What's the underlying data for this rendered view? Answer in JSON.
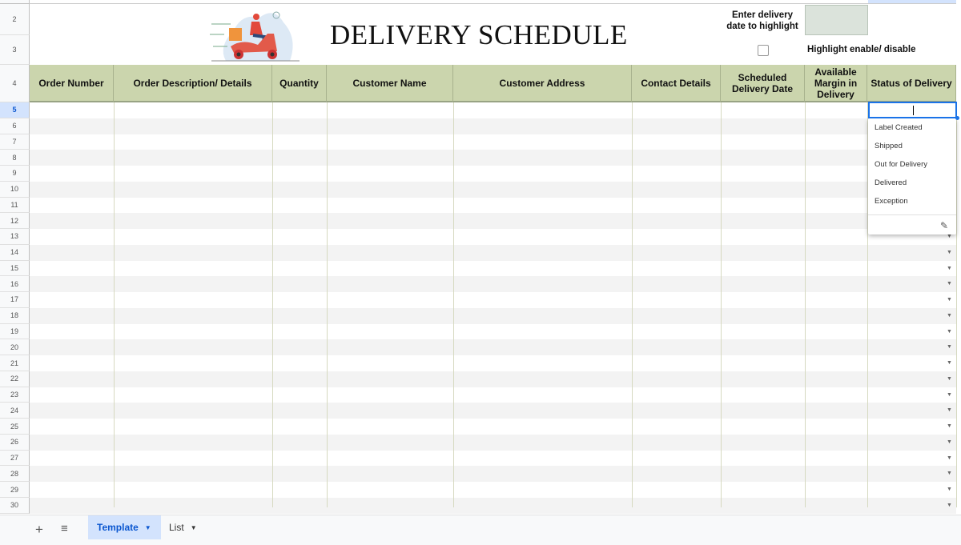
{
  "title": "DELIVERY SCHEDULE",
  "highlight": {
    "date_label_line1": "Enter delivery",
    "date_label_line2": "date to highlight",
    "date_value": "",
    "checkbox_label": "Highlight enable/ disable",
    "checked": false
  },
  "columns": [
    "Order Number",
    "Order Description/ Details",
    "Quantity",
    "Customer Name",
    "Customer Address",
    "Contact Details",
    "Scheduled Delivery Date",
    "Available Margin in Delivery",
    "Status of Delivery"
  ],
  "row_numbers": [
    "2",
    "3",
    "4",
    "5",
    "6",
    "7",
    "8",
    "9",
    "10",
    "11",
    "12",
    "13",
    "14",
    "15",
    "16",
    "17",
    "18",
    "19",
    "20",
    "21",
    "22",
    "23",
    "24",
    "25",
    "26",
    "27",
    "28",
    "29",
    "30"
  ],
  "status_dropdown": {
    "current_value": "",
    "options": [
      "Label Created",
      "Shipped",
      "Out for Delivery",
      "Delivered",
      "Exception"
    ],
    "edit_icon": "pencil-icon"
  },
  "sheet_tabs": [
    {
      "label": "Template",
      "active": true
    },
    {
      "label": "List",
      "active": false
    }
  ],
  "colors": {
    "header_bg": "#cbd5ad",
    "date_box_bg": "#dbe3db",
    "active_tab": "#0b57d0"
  }
}
